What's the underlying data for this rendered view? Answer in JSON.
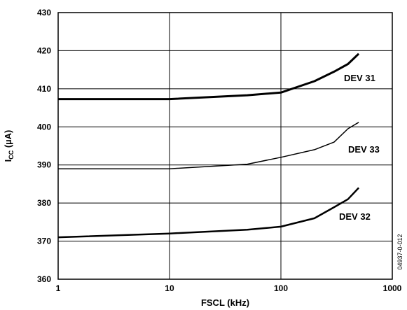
{
  "chart_data": {
    "type": "line",
    "x_scale": "log",
    "xlim": [
      1,
      1000
    ],
    "ylim": [
      360,
      430
    ],
    "xlabel": "FSCL (kHz)",
    "ylabel_main": "I",
    "ylabel_sub": "CC",
    "ylabel_unit": " (µA)",
    "x_ticks": [
      1,
      10,
      100,
      1000
    ],
    "x_tick_labels": [
      "1",
      "10",
      "100",
      "1000"
    ],
    "y_ticks": [
      360,
      370,
      380,
      390,
      400,
      410,
      420,
      430
    ],
    "y_tick_labels": [
      "360",
      "370",
      "380",
      "390",
      "400",
      "410",
      "420",
      "430"
    ],
    "grid": true,
    "series": [
      {
        "name": "DEV 31",
        "x": [
          1,
          10,
          50,
          100,
          200,
          300,
          400,
          500
        ],
        "y": [
          407.3,
          407.3,
          408.3,
          409.0,
          412.0,
          414.5,
          416.5,
          419.2
        ]
      },
      {
        "name": "DEV 33",
        "x": [
          1,
          10,
          50,
          100,
          200,
          300,
          400,
          500
        ],
        "y": [
          389.0,
          389.0,
          390.2,
          392.0,
          394.0,
          396.0,
          399.5,
          401.2
        ]
      },
      {
        "name": "DEV 32",
        "x": [
          1,
          10,
          50,
          100,
          200,
          300,
          400,
          500
        ],
        "y": [
          371.0,
          372.0,
          373.0,
          373.8,
          376.0,
          378.9,
          381.0,
          384.0
        ]
      }
    ],
    "side_note": "04937-0-012"
  }
}
